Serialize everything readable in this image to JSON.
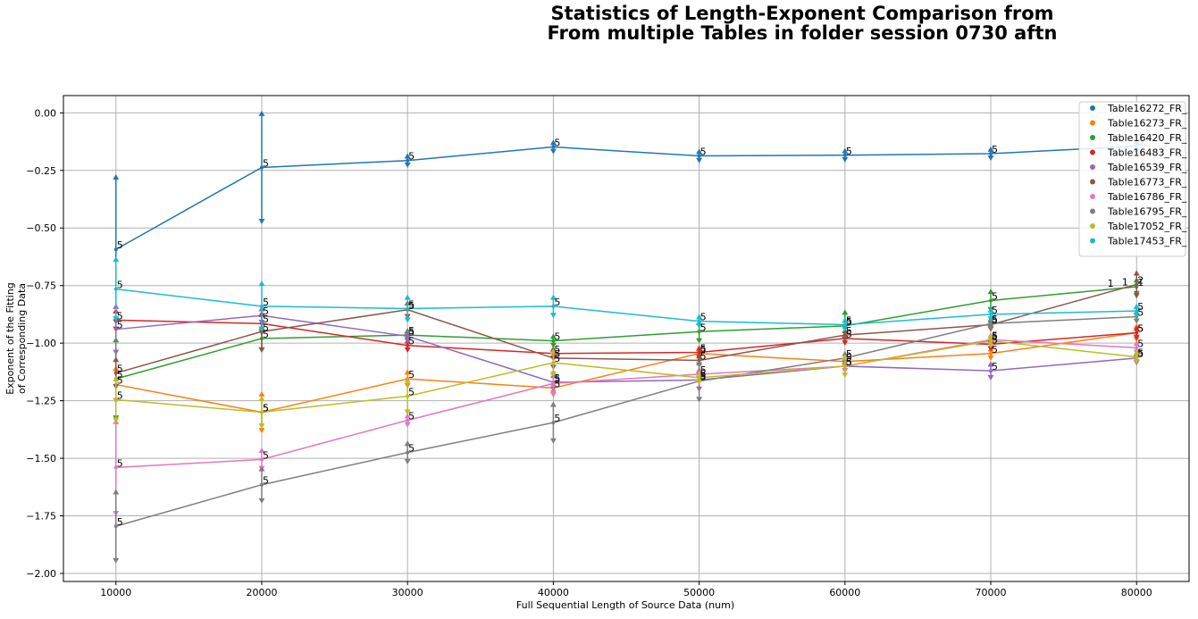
{
  "chart_data": {
    "type": "line",
    "title_lines": [
      "Statistics of Length-Exponent Comparison from",
      "From multiple Tables in folder session 0730 aftn"
    ],
    "xlabel": "Full Sequential Length of Source Data (num)",
    "ylabel_lines": [
      "Exponent of the Fitting",
      "of Corresponding Data"
    ],
    "x": [
      10000,
      20000,
      30000,
      40000,
      50000,
      60000,
      70000,
      80000
    ],
    "xlim": [
      6400,
      83600
    ],
    "ylim": [
      -2.035,
      0.075
    ],
    "xticks": [
      10000,
      20000,
      30000,
      40000,
      50000,
      60000,
      70000,
      80000
    ],
    "xtick_labels": [
      "10000",
      "20000",
      "30000",
      "40000",
      "50000",
      "60000",
      "70000",
      "80000"
    ],
    "yticks": [
      0.0,
      -0.25,
      -0.5,
      -0.75,
      -1.0,
      -1.25,
      -1.5,
      -1.75,
      -2.0
    ],
    "ytick_labels": [
      "0.00",
      "−0.25",
      "−0.50",
      "−0.75",
      "−1.00",
      "−1.25",
      "−1.50",
      "−1.75",
      "−2.00"
    ],
    "grid": true,
    "legend_position": "top-right",
    "series": [
      {
        "name": "Table16272_FR_",
        "color": "#1f77b4",
        "values": [
          -0.593,
          -0.237,
          -0.207,
          -0.148,
          -0.187,
          -0.184,
          -0.177,
          -0.145
        ],
        "err": [
          0.315,
          0.235,
          0.02,
          0.02,
          0.02,
          0.02,
          0.02,
          0.02
        ],
        "labels": [
          "5",
          "5",
          "5",
          "5",
          "5",
          "5",
          "5",
          "5"
        ]
      },
      {
        "name": "Table16273_FR_",
        "color": "#ff7f0e",
        "values": [
          -1.18,
          -1.3,
          -1.155,
          -1.195,
          -1.045,
          -1.08,
          -1.045,
          -0.955
        ],
        "err": [
          0.07,
          0.08,
          0.03,
          0.02,
          0.02,
          0.02,
          0.02,
          0.03
        ],
        "labels": [
          "5",
          "5",
          "5",
          "5",
          "5",
          "5",
          "5",
          "5"
        ]
      },
      {
        "name": "Table16420_FR_",
        "color": "#2ca02c",
        "values": [
          -1.155,
          -0.98,
          -0.965,
          -0.99,
          -0.95,
          -0.925,
          -0.815,
          -0.755
        ],
        "err": [
          0.17,
          0.05,
          0.02,
          0.02,
          0.04,
          0.06,
          0.04,
          0.03
        ],
        "labels": [
          "5",
          "5",
          "5",
          "5",
          "5",
          "5",
          "5",
          "1"
        ]
      },
      {
        "name": "Table16483_FR_",
        "color": "#d62728",
        "values": [
          -0.9,
          -0.915,
          -1.01,
          -1.045,
          -1.04,
          -0.98,
          -1.005,
          -0.955
        ],
        "err": [
          0.04,
          0.04,
          0.02,
          0.02,
          0.02,
          0.02,
          0.02,
          0.02
        ],
        "labels": [
          "5",
          "5",
          "5",
          "5",
          "5",
          "5",
          "5",
          "5"
        ]
      },
      {
        "name": "Table16539_FR_",
        "color": "#9467bd",
        "values": [
          -0.94,
          -0.88,
          -0.97,
          -1.17,
          -1.16,
          -1.1,
          -1.12,
          -1.065
        ],
        "err": [
          0.1,
          0.03,
          0.02,
          0.03,
          0.04,
          0.02,
          0.03,
          0.02
        ],
        "labels": [
          "5",
          "5",
          "5",
          "5",
          "5",
          "5",
          "5",
          "5"
        ]
      },
      {
        "name": "Table16773_FR_",
        "color": "#8c564b",
        "values": [
          -1.13,
          -0.95,
          -0.855,
          -1.065,
          -1.075,
          -0.965,
          -0.92,
          -0.745
        ],
        "err": [
          0.06,
          0.08,
          0.03,
          0.04,
          0.02,
          0.02,
          0.02,
          0.05
        ],
        "labels": [
          "5",
          "5",
          "5",
          "5",
          "5",
          "5",
          "5",
          "2"
        ]
      },
      {
        "name": "Table16786_FR_",
        "color": "#e377c2",
        "values": [
          -1.54,
          -1.505,
          -1.335,
          -1.175,
          -1.135,
          -1.1,
          -0.985,
          -1.02
        ],
        "err": [
          0.2,
          0.04,
          0.02,
          0.05,
          0.02,
          0.02,
          0.02,
          0.02
        ],
        "labels": [
          "5",
          "5",
          "5",
          "5",
          "5",
          "5",
          "5",
          "5"
        ]
      },
      {
        "name": "Table16795_FR_",
        "color": "#7f7f7f",
        "values": [
          -1.795,
          -1.615,
          -1.475,
          -1.345,
          -1.165,
          -1.065,
          -0.915,
          -0.885
        ],
        "err": [
          0.15,
          0.07,
          0.04,
          0.08,
          0.08,
          0.02,
          0.02,
          0.02
        ],
        "labels": [
          "5",
          "5",
          "5",
          "5",
          "5",
          "5",
          "5",
          "5"
        ]
      },
      {
        "name": "Table17052_FR_",
        "color": "#bcbd22",
        "values": [
          -1.245,
          -1.3,
          -1.23,
          -1.085,
          -1.15,
          -1.1,
          -0.99,
          -1.06
        ],
        "err": [
          0.09,
          0.06,
          0.07,
          0.05,
          0.02,
          0.04,
          0.02,
          0.02
        ],
        "labels": [
          "5",
          "5",
          "5",
          "5",
          "5",
          "5",
          "5",
          "5"
        ]
      },
      {
        "name": "Table17453_FR_",
        "color": "#17becf",
        "values": [
          -0.765,
          -0.84,
          -0.85,
          -0.84,
          -0.905,
          -0.92,
          -0.875,
          -0.86
        ],
        "err": [
          0.13,
          0.1,
          0.05,
          0.04,
          0.02,
          0.02,
          0.02,
          0.02
        ],
        "labels": [
          "5",
          "5",
          "5",
          "5",
          "5",
          "5",
          "5",
          "5"
        ]
      }
    ],
    "extra_labels": [
      {
        "x": 78000,
        "y": -0.755,
        "text": "1"
      },
      {
        "x": 79000,
        "y": -0.75,
        "text": "1"
      }
    ]
  }
}
